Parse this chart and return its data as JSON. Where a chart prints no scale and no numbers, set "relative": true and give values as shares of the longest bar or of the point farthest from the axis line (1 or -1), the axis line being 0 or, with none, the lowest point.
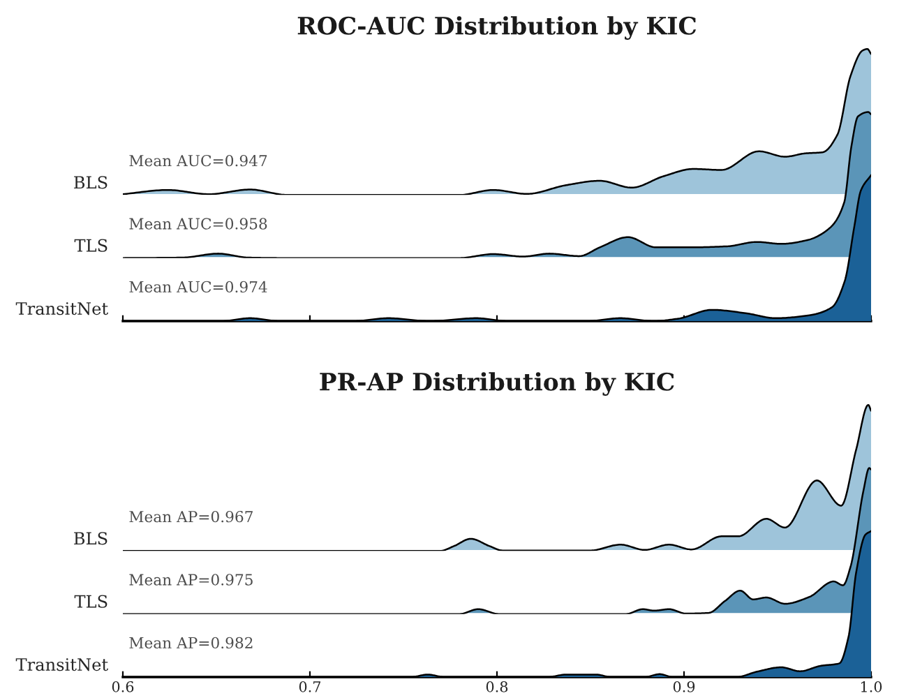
{
  "chart_data": [
    {
      "type": "area",
      "title": "ROC-AUC Distribution by KIC",
      "relative": true,
      "xlim": [
        0.6,
        1.0
      ],
      "tick_labels": false,
      "annotations": [
        "Mean AUC=0.947"
      ],
      "series": [
        {
          "name": "BLS",
          "color": "#9ec4da",
          "x": [
            0.6,
            0.624,
            0.646,
            0.668,
            0.688,
            0.72,
            0.75,
            0.78,
            0.798,
            0.816,
            0.837,
            0.855,
            0.872,
            0.889,
            0.905,
            0.92,
            0.94,
            0.954,
            0.965,
            0.974,
            0.982,
            0.989,
            0.9955,
            0.998,
            1.0
          ],
          "values": [
            0.005,
            0.034,
            0.005,
            0.037,
            0,
            0,
            0,
            0,
            0.034,
            0.007,
            0.067,
            0.097,
            0.05,
            0.128,
            0.178,
            0.171,
            0.299,
            0.262,
            0.285,
            0.292,
            0.413,
            0.815,
            0.99,
            1.0,
            0.966
          ]
        }
      ]
    },
    {
      "type": "area",
      "relative": true,
      "xlim": [
        0.6,
        1.0
      ],
      "tick_labels": false,
      "annotations": [
        "Mean AUC=0.958"
      ],
      "series": [
        {
          "name": "TLS",
          "color": "#5b95b8",
          "x": [
            0.6,
            0.632,
            0.651,
            0.667,
            0.684,
            0.72,
            0.75,
            0.78,
            0.798,
            0.814,
            0.828,
            0.844,
            0.855,
            0.87,
            0.885,
            0.902,
            0.923,
            0.939,
            0.952,
            0.966,
            0.978,
            0.9856,
            0.9895,
            0.993,
            0.9985,
            1.0
          ],
          "values": [
            0,
            0.003,
            0.03,
            0.003,
            0,
            0,
            0,
            0,
            0.027,
            0.01,
            0.03,
            0.013,
            0.073,
            0.143,
            0.073,
            0.073,
            0.08,
            0.11,
            0.097,
            0.123,
            0.207,
            0.38,
            0.767,
            0.97,
            1.0,
            0.985
          ]
        }
      ]
    },
    {
      "type": "area",
      "relative": true,
      "xlim": [
        0.6,
        1.0
      ],
      "xticks": [
        0.6,
        0.7,
        0.8,
        0.9,
        1.0
      ],
      "tick_labels": false,
      "annotations": [
        "Mean AUC=0.974"
      ],
      "series": [
        {
          "name": "TransitNet",
          "color": "#1b6197",
          "x": [
            0.6,
            0.6526,
            0.668,
            0.684,
            0.723,
            0.742,
            0.764,
            0.789,
            0.806,
            0.848,
            0.866,
            0.884,
            0.897,
            0.915,
            0.933,
            0.949,
            0.967,
            0.979,
            0.986,
            0.991,
            0.9945,
            1.0
          ],
          "values": [
            0,
            0,
            0.02,
            0,
            0,
            0.02,
            0,
            0.02,
            0,
            0,
            0.02,
            0,
            0.017,
            0.077,
            0.054,
            0.02,
            0.04,
            0.094,
            0.278,
            0.645,
            0.893,
            1.0
          ]
        }
      ]
    },
    {
      "type": "area",
      "title": "PR-AP Distribution by KIC",
      "relative": true,
      "xlim": [
        0.6,
        1.0
      ],
      "tick_labels": false,
      "annotations": [
        "Mean AP=0.967"
      ],
      "series": [
        {
          "name": "BLS",
          "color": "#9ec4da",
          "x": [
            0.6,
            0.7,
            0.7696,
            0.777,
            0.786,
            0.796,
            0.803,
            0.85,
            0.866,
            0.879,
            0.892,
            0.904,
            0.92,
            0.929,
            0.944,
            0.954,
            0.971,
            0.984,
            0.992,
            0.9985,
            1.0
          ],
          "values": [
            0,
            0,
            0,
            0.033,
            0.083,
            0.033,
            0.003,
            0.003,
            0.043,
            0.007,
            0.043,
            0.01,
            0.1,
            0.1,
            0.22,
            0.16,
            0.483,
            0.31,
            0.693,
            1.0,
            0.96
          ]
        }
      ]
    },
    {
      "type": "area",
      "relative": true,
      "xlim": [
        0.6,
        1.0
      ],
      "tick_labels": false,
      "annotations": [
        "Mean AP=0.975"
      ],
      "series": [
        {
          "name": "TLS",
          "color": "#5b95b8",
          "x": [
            0.6,
            0.7,
            0.78,
            0.79,
            0.801,
            0.869,
            0.878,
            0.884,
            0.892,
            0.901,
            0.913,
            0.922,
            0.93,
            0.937,
            0.944,
            0.954,
            0.967,
            0.98,
            0.985,
            0.989,
            0.996,
            0.999,
            1.0
          ],
          "values": [
            0,
            0,
            0,
            0.033,
            0,
            0,
            0.033,
            0.023,
            0.033,
            0.003,
            0.007,
            0.09,
            0.16,
            0.1,
            0.113,
            0.07,
            0.117,
            0.223,
            0.197,
            0.323,
            0.85,
            1.0,
            0.99
          ]
        }
      ]
    },
    {
      "type": "area",
      "relative": true,
      "xlim": [
        0.6,
        1.0
      ],
      "xticks": [
        0.6,
        0.7,
        0.8,
        0.9,
        {
          "value": 1.0,
          "label": "1.0"
        }
      ],
      "tick_labels": "x",
      "annotations": [
        "Mean AP=0.982"
      ],
      "series": [
        {
          "name": "TransitNet",
          "color": "#1b6197",
          "x": [
            0.6,
            0.754,
            0.763,
            0.772,
            0.827,
            0.837,
            0.853,
            0.861,
            0.879,
            0.887,
            0.894,
            0.928,
            0.939,
            0.952,
            0.962,
            0.973,
            0.983,
            0.988,
            0.992,
            0.997,
            1.0
          ],
          "values": [
            0,
            0,
            0.017,
            0,
            0,
            0.017,
            0.017,
            0,
            0,
            0.02,
            0,
            0,
            0.037,
            0.067,
            0.04,
            0.077,
            0.094,
            0.28,
            0.715,
            0.976,
            1.0
          ]
        }
      ]
    }
  ]
}
